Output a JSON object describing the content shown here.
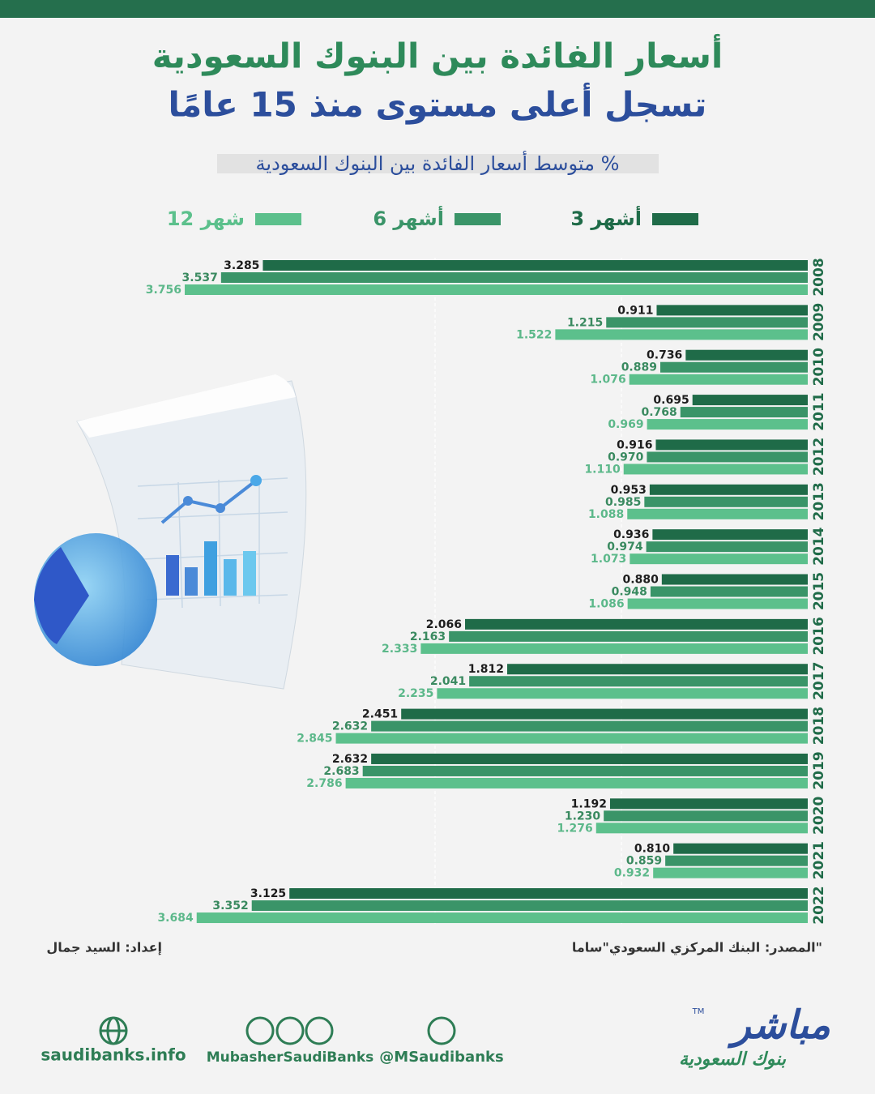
{
  "chart_data": {
    "type": "hbar",
    "title": "أسعار الفائدة بين البنوك السعودية",
    "subtitle": "تسجل أعلى مستوى منذ 15 عامًا",
    "axis_label": "متوسط أسعار الفائدة بين البنوك السعودية %",
    "categories": [
      "2008",
      "2009",
      "2010",
      "2011",
      "2012",
      "2013",
      "2014",
      "2015",
      "2016",
      "2017",
      "2018",
      "2019",
      "2020",
      "2021",
      "2022"
    ],
    "xlim": [
      0,
      3.8
    ],
    "series": [
      {
        "name": "3 أشهر",
        "color": "#1f6b48",
        "values": [
          3.285,
          0.911,
          0.736,
          0.695,
          0.916,
          0.953,
          0.936,
          0.88,
          2.066,
          1.812,
          2.451,
          2.632,
          1.192,
          0.81,
          3.125
        ],
        "value_labels": [
          "3.285",
          "0.911",
          "0.736",
          "0.695",
          "0.916",
          "0.953",
          "0.936",
          "0.880",
          "2.066",
          "1.812",
          "2.451",
          "2.632",
          "1.192",
          "0.810",
          "3.125"
        ]
      },
      {
        "name": "6 أشهر",
        "color": "#3a9468",
        "values": [
          3.537,
          1.215,
          0.889,
          0.768,
          0.97,
          0.985,
          0.974,
          0.948,
          2.163,
          2.041,
          2.632,
          2.683,
          1.23,
          0.859,
          3.352
        ],
        "value_labels": [
          "3.537",
          "1.215",
          "0.889",
          "0.768",
          "0.970",
          "0.985",
          "0.974",
          "0.948",
          "2.163",
          "2.041",
          "2.632",
          "2.683",
          "1.230",
          "0.859",
          "3.352"
        ]
      },
      {
        "name": "12 شهر",
        "color": "#5cc08c",
        "values": [
          3.756,
          1.522,
          1.076,
          0.969,
          1.11,
          1.088,
          1.073,
          1.086,
          2.333,
          2.235,
          2.845,
          2.786,
          1.276,
          0.932,
          3.684
        ],
        "value_labels": [
          "3.756",
          "1.522",
          "1.076",
          "0.969",
          "1.110",
          "1.088",
          "1.073",
          "1.086",
          "2.333",
          "2.235",
          "2.845",
          "2.786",
          "1.276",
          "0.932",
          "3.684"
        ]
      }
    ]
  },
  "footer": {
    "source": "المصدر: البنك المركزي السعودي\"ساما\"",
    "author": "إعداد: السيد جمال",
    "website": "saudibanks.info",
    "social": "MubasherSaudiBanks",
    "twitter": "@MSaudibanks",
    "logo": "مباشر",
    "logo_sub": "بنوك السعودية",
    "trademark": "TM"
  }
}
